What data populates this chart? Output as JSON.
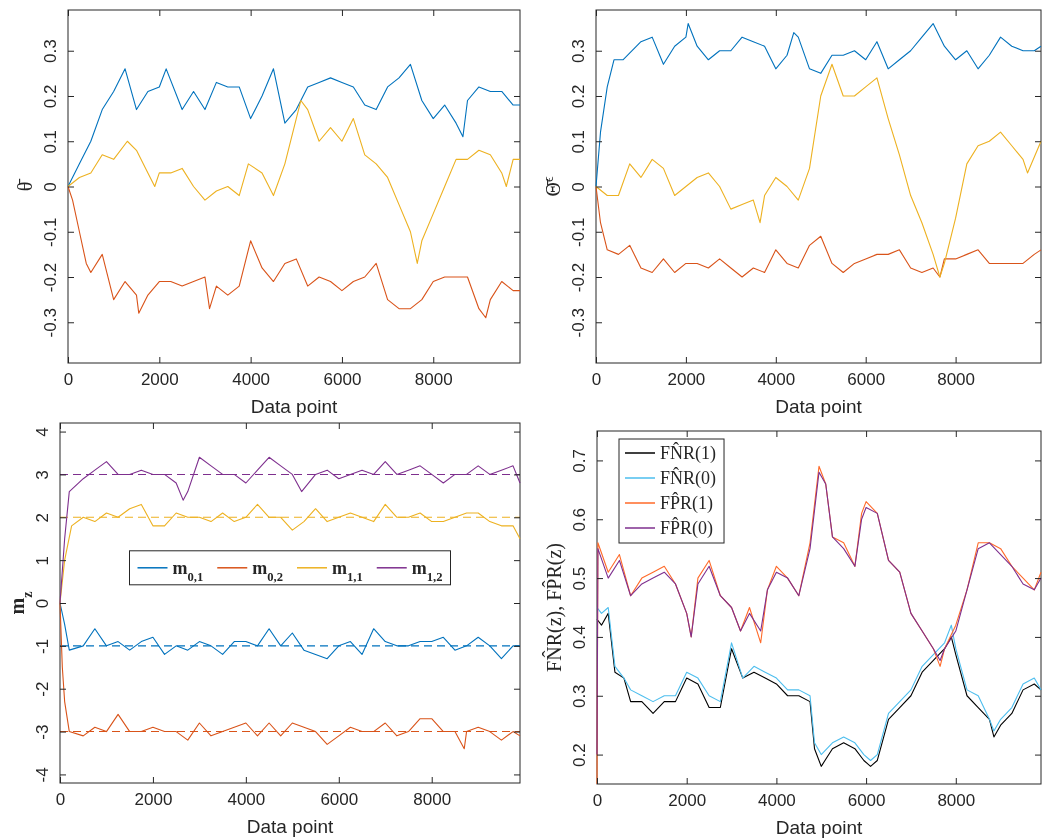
{
  "chart_data": [
    {
      "type": "line",
      "xlabel": "Data point",
      "ylabel": "θ̄",
      "xlim": [
        0,
        9900
      ],
      "ylim": [
        -0.39,
        0.39
      ],
      "xticks": [
        0,
        2000,
        4000,
        6000,
        8000
      ],
      "yticks": [
        -0.3,
        -0.2,
        -0.1,
        0,
        0.1,
        0.2,
        0.3
      ],
      "series": [
        {
          "color": "#0072bd",
          "x": [
            0,
            250,
            500,
            750,
            1000,
            1250,
            1500,
            1750,
            2000,
            2150,
            2500,
            2750,
            3000,
            3250,
            3500,
            3750,
            4000,
            4250,
            4500,
            4750,
            5000,
            5250,
            5500,
            5750,
            6000,
            6250,
            6500,
            6750,
            7000,
            7250,
            7500,
            7750,
            8000,
            8250,
            8500,
            8650,
            8750,
            9000,
            9250,
            9500,
            9750,
            9900
          ],
          "values": [
            0,
            0.05,
            0.1,
            0.17,
            0.21,
            0.26,
            0.17,
            0.21,
            0.22,
            0.26,
            0.17,
            0.21,
            0.17,
            0.23,
            0.22,
            0.22,
            0.15,
            0.2,
            0.26,
            0.14,
            0.17,
            0.22,
            0.23,
            0.24,
            0.23,
            0.22,
            0.18,
            0.17,
            0.22,
            0.24,
            0.27,
            0.19,
            0.15,
            0.18,
            0.14,
            0.11,
            0.19,
            0.22,
            0.21,
            0.21,
            0.18,
            0.18
          ]
        },
        {
          "color": "#d95319",
          "x": [
            0,
            100,
            250,
            400,
            500,
            750,
            1000,
            1250,
            1500,
            1550,
            1750,
            2000,
            2250,
            2500,
            2750,
            3000,
            3100,
            3250,
            3500,
            3750,
            4000,
            4250,
            4500,
            4750,
            5000,
            5250,
            5500,
            5750,
            6000,
            6250,
            6500,
            6750,
            7000,
            7250,
            7500,
            7750,
            8000,
            8250,
            8500,
            8750,
            9000,
            9150,
            9250,
            9500,
            9750,
            9900
          ],
          "values": [
            0,
            -0.03,
            -0.1,
            -0.17,
            -0.19,
            -0.15,
            -0.25,
            -0.21,
            -0.24,
            -0.28,
            -0.24,
            -0.21,
            -0.21,
            -0.22,
            -0.21,
            -0.2,
            -0.27,
            -0.22,
            -0.24,
            -0.22,
            -0.12,
            -0.18,
            -0.21,
            -0.17,
            -0.16,
            -0.22,
            -0.2,
            -0.21,
            -0.23,
            -0.21,
            -0.2,
            -0.17,
            -0.25,
            -0.27,
            -0.27,
            -0.25,
            -0.21,
            -0.2,
            -0.2,
            -0.2,
            -0.27,
            -0.29,
            -0.25,
            -0.21,
            -0.23,
            -0.23
          ]
        },
        {
          "color": "#edb120",
          "x": [
            0,
            250,
            500,
            750,
            1000,
            1300,
            1500,
            1750,
            1900,
            2000,
            2250,
            2500,
            2750,
            3000,
            3250,
            3500,
            3750,
            3950,
            4250,
            4500,
            4750,
            5000,
            5100,
            5250,
            5500,
            5750,
            6000,
            6250,
            6500,
            6750,
            7000,
            7250,
            7500,
            7650,
            7750,
            8000,
            8250,
            8500,
            8750,
            9000,
            9250,
            9500,
            9600,
            9750,
            9900
          ],
          "values": [
            0,
            0.02,
            0.03,
            0.07,
            0.06,
            0.1,
            0.08,
            0.03,
            0,
            0.03,
            0.03,
            0.04,
            0,
            -0.03,
            -0.01,
            0,
            -0.02,
            0.05,
            0.03,
            -0.02,
            0.05,
            0.15,
            0.19,
            0.17,
            0.1,
            0.13,
            0.1,
            0.15,
            0.07,
            0.05,
            0.02,
            -0.04,
            -0.1,
            -0.17,
            -0.12,
            -0.06,
            0,
            0.06,
            0.06,
            0.08,
            0.07,
            0.03,
            0,
            0.06,
            0.06
          ]
        }
      ]
    },
    {
      "type": "line",
      "xlabel": "Data point",
      "ylabel": "Θ̄$^{ϵ}$",
      "xlim": [
        0,
        9900
      ],
      "ylim": [
        -0.39,
        0.39
      ],
      "xticks": [
        0,
        2000,
        4000,
        6000,
        8000
      ],
      "yticks": [
        -0.3,
        -0.2,
        -0.1,
        0,
        0.1,
        0.2,
        0.3
      ],
      "series": [
        {
          "color": "#0072bd",
          "x": [
            0,
            100,
            250,
            400,
            600,
            1000,
            1250,
            1500,
            1750,
            2000,
            2050,
            2250,
            2500,
            2750,
            3000,
            3250,
            3500,
            3750,
            4000,
            4250,
            4400,
            4500,
            4750,
            5000,
            5250,
            5500,
            5750,
            6000,
            6250,
            6500,
            6750,
            7000,
            7250,
            7500,
            7750,
            8000,
            8250,
            8500,
            8750,
            9000,
            9250,
            9500,
            9750,
            9900
          ],
          "values": [
            0,
            0.12,
            0.22,
            0.28,
            0.28,
            0.32,
            0.33,
            0.27,
            0.31,
            0.33,
            0.36,
            0.31,
            0.28,
            0.3,
            0.3,
            0.33,
            0.32,
            0.31,
            0.26,
            0.29,
            0.34,
            0.33,
            0.26,
            0.25,
            0.29,
            0.29,
            0.3,
            0.28,
            0.32,
            0.26,
            0.28,
            0.3,
            0.33,
            0.36,
            0.31,
            0.28,
            0.3,
            0.26,
            0.29,
            0.33,
            0.31,
            0.3,
            0.3,
            0.31
          ]
        },
        {
          "color": "#d95319",
          "x": [
            0,
            100,
            250,
            500,
            750,
            1000,
            1250,
            1500,
            1750,
            2000,
            2250,
            2500,
            2750,
            3000,
            3250,
            3500,
            3750,
            4000,
            4250,
            4500,
            4750,
            5000,
            5250,
            5500,
            5750,
            6000,
            6250,
            6500,
            6750,
            7000,
            7250,
            7500,
            7650,
            7750,
            8000,
            8250,
            8500,
            8750,
            9000,
            9250,
            9500,
            9750,
            9900
          ],
          "values": [
            0,
            -0.08,
            -0.14,
            -0.15,
            -0.13,
            -0.18,
            -0.19,
            -0.16,
            -0.19,
            -0.17,
            -0.17,
            -0.18,
            -0.16,
            -0.18,
            -0.2,
            -0.18,
            -0.19,
            -0.14,
            -0.17,
            -0.18,
            -0.13,
            -0.11,
            -0.17,
            -0.19,
            -0.17,
            -0.16,
            -0.15,
            -0.15,
            -0.14,
            -0.18,
            -0.19,
            -0.18,
            -0.2,
            -0.16,
            -0.16,
            -0.15,
            -0.14,
            -0.17,
            -0.17,
            -0.17,
            -0.17,
            -0.15,
            -0.14
          ]
        },
        {
          "color": "#edb120",
          "x": [
            0,
            250,
            500,
            750,
            1000,
            1250,
            1500,
            1750,
            2000,
            2250,
            2500,
            2750,
            3000,
            3250,
            3500,
            3650,
            3750,
            4000,
            4250,
            4500,
            4750,
            5000,
            5250,
            5500,
            5750,
            6000,
            6250,
            6500,
            6750,
            7000,
            7250,
            7500,
            7650,
            7750,
            8000,
            8250,
            8500,
            8750,
            9000,
            9250,
            9500,
            9600,
            9900
          ],
          "values": [
            0,
            -0.02,
            -0.02,
            0.05,
            0.02,
            0.06,
            0.04,
            -0.02,
            0,
            0.02,
            0.03,
            0,
            -0.05,
            -0.04,
            -0.03,
            -0.08,
            -0.02,
            0.02,
            0,
            -0.03,
            0.04,
            0.2,
            0.27,
            0.2,
            0.2,
            0.22,
            0.24,
            0.15,
            0.07,
            -0.02,
            -0.08,
            -0.15,
            -0.2,
            -0.17,
            -0.07,
            0.05,
            0.09,
            0.1,
            0.12,
            0.09,
            0.06,
            0.03,
            0.1
          ]
        }
      ]
    },
    {
      "type": "line",
      "xlabel": "Data point",
      "ylabel": "m$_{z}$",
      "xlim": [
        0,
        9900
      ],
      "ylim": [
        -4.2,
        4.2
      ],
      "xticks": [
        0,
        2000,
        4000,
        6000,
        8000
      ],
      "yticks": [
        -4,
        -3,
        -2,
        -1,
        0,
        1,
        2,
        3,
        4
      ],
      "legend": "top",
      "ref_lines": [
        {
          "axis": "y",
          "value": 3,
          "color": "#7e2f8e",
          "line_style": "dashed"
        },
        {
          "axis": "y",
          "value": 2,
          "color": "#edb120",
          "line_style": "dashed"
        },
        {
          "axis": "y",
          "value": -1,
          "color": "#0072bd",
          "line_style": "dashed"
        },
        {
          "axis": "y",
          "value": -3,
          "color": "#d95319",
          "line_style": "dashed"
        }
      ],
      "series": [
        {
          "name": "m$_{0,1}$",
          "color": "#0072bd",
          "x": [
            0,
            100,
            200,
            500,
            750,
            1000,
            1250,
            1500,
            1750,
            2000,
            2250,
            2500,
            2750,
            3000,
            3250,
            3500,
            3750,
            4000,
            4250,
            4500,
            4750,
            5000,
            5250,
            5500,
            5750,
            6000,
            6250,
            6500,
            6750,
            7000,
            7250,
            7500,
            7750,
            8000,
            8250,
            8500,
            8750,
            9000,
            9250,
            9500,
            9750,
            9900
          ],
          "values": [
            0,
            -0.5,
            -1.1,
            -1,
            -0.6,
            -1,
            -0.9,
            -1.1,
            -0.9,
            -0.8,
            -1.2,
            -1,
            -1.1,
            -0.9,
            -1,
            -1.2,
            -0.9,
            -0.9,
            -1,
            -0.6,
            -1,
            -0.7,
            -1.1,
            -1.2,
            -1.3,
            -1,
            -0.9,
            -1.2,
            -0.6,
            -0.9,
            -1,
            -1,
            -0.9,
            -0.9,
            -0.8,
            -1.1,
            -1,
            -0.8,
            -1,
            -1.3,
            -1,
            -1
          ]
        },
        {
          "name": "m$_{0,2}$",
          "color": "#d95319",
          "x": [
            0,
            50,
            100,
            200,
            500,
            750,
            1000,
            1250,
            1500,
            1750,
            2000,
            2250,
            2500,
            2750,
            3000,
            3250,
            3500,
            3750,
            4000,
            4250,
            4500,
            4750,
            5000,
            5250,
            5500,
            5750,
            6000,
            6250,
            6500,
            6750,
            7000,
            7250,
            7500,
            7750,
            8000,
            8250,
            8500,
            8700,
            8750,
            9000,
            9250,
            9500,
            9750,
            9900
          ],
          "values": [
            0,
            -1.5,
            -2.3,
            -3,
            -3.1,
            -2.9,
            -3,
            -2.6,
            -3,
            -3,
            -2.9,
            -3,
            -3,
            -3.2,
            -2.8,
            -3.1,
            -3,
            -2.9,
            -2.8,
            -3.1,
            -2.8,
            -3.1,
            -2.8,
            -2.9,
            -3,
            -3.3,
            -3.1,
            -2.9,
            -3,
            -3,
            -2.8,
            -3.1,
            -3,
            -2.7,
            -2.7,
            -3,
            -3,
            -3.4,
            -3,
            -2.9,
            -3,
            -3.2,
            -3,
            -3.1
          ]
        },
        {
          "name": "m$_{1,1}$",
          "color": "#edb120",
          "x": [
            0,
            100,
            250,
            500,
            750,
            1000,
            1250,
            1500,
            1750,
            2000,
            2250,
            2500,
            2750,
            3000,
            3250,
            3500,
            3750,
            4000,
            4250,
            4500,
            4750,
            5000,
            5250,
            5500,
            5750,
            6000,
            6250,
            6500,
            6750,
            7000,
            7250,
            7500,
            7750,
            8000,
            8250,
            8500,
            8750,
            9000,
            9250,
            9500,
            9750,
            9900
          ],
          "values": [
            0,
            1,
            1.8,
            2,
            1.9,
            2.1,
            2,
            2.2,
            2.3,
            1.8,
            1.8,
            2.1,
            2,
            2,
            1.9,
            2.1,
            1.9,
            2,
            2.3,
            2,
            2,
            1.7,
            1.9,
            2.2,
            1.9,
            2,
            2.1,
            2,
            1.9,
            2.3,
            2,
            2,
            2.1,
            1.9,
            1.9,
            2,
            2.1,
            2.1,
            1.9,
            1.8,
            1.8,
            1.5
          ]
        },
        {
          "name": "m$_{1,2}$",
          "color": "#7e2f8e",
          "x": [
            0,
            100,
            200,
            500,
            750,
            1000,
            1250,
            1500,
            1750,
            2000,
            2250,
            2500,
            2650,
            2750,
            3000,
            3250,
            3500,
            3750,
            4000,
            4250,
            4500,
            4750,
            5000,
            5200,
            5500,
            5750,
            6000,
            6250,
            6500,
            6750,
            7000,
            7250,
            7500,
            7750,
            8000,
            8250,
            8500,
            8750,
            9000,
            9250,
            9500,
            9750,
            9900
          ],
          "values": [
            0,
            1.5,
            2.6,
            2.9,
            3.1,
            3.3,
            3,
            3,
            3.1,
            3,
            3,
            2.8,
            2.4,
            2.6,
            3.4,
            3.2,
            3,
            3,
            2.8,
            3.1,
            3.4,
            3.2,
            3,
            2.6,
            3,
            3.1,
            2.9,
            3,
            3.1,
            3,
            3.3,
            3,
            3.1,
            3.2,
            3,
            2.8,
            3,
            3,
            3.2,
            3,
            3.1,
            3.2,
            2.8
          ]
        }
      ]
    },
    {
      "type": "line",
      "xlabel": "Data point",
      "ylabel": "FN̂R(z), FP̂R(z)",
      "xlim": [
        0,
        9900
      ],
      "ylim": [
        0.15,
        0.75
      ],
      "xticks": [
        0,
        2000,
        4000,
        6000,
        8000
      ],
      "yticks": [
        0.2,
        0.3,
        0.4,
        0.5,
        0.6,
        0.7
      ],
      "legend": "top left",
      "series": [
        {
          "name": "FN̂R(1)",
          "color": "#000000",
          "x": [
            0,
            100,
            250,
            400,
            600,
            750,
            1000,
            1250,
            1500,
            1750,
            2000,
            2250,
            2500,
            2750,
            3000,
            3250,
            3500,
            3750,
            4000,
            4250,
            4500,
            4750,
            4850,
            5000,
            5250,
            5500,
            5750,
            5950,
            6100,
            6250,
            6500,
            6750,
            7000,
            7250,
            7500,
            7750,
            7900,
            8000,
            8250,
            8500,
            8750,
            8850,
            9000,
            9250,
            9500,
            9750,
            9900
          ],
          "values": [
            0.43,
            0.42,
            0.44,
            0.34,
            0.33,
            0.29,
            0.29,
            0.27,
            0.29,
            0.29,
            0.33,
            0.32,
            0.28,
            0.28,
            0.38,
            0.33,
            0.34,
            0.33,
            0.32,
            0.3,
            0.3,
            0.29,
            0.21,
            0.18,
            0.21,
            0.22,
            0.21,
            0.19,
            0.18,
            0.19,
            0.26,
            0.28,
            0.3,
            0.34,
            0.36,
            0.38,
            0.4,
            0.37,
            0.3,
            0.28,
            0.26,
            0.23,
            0.25,
            0.27,
            0.31,
            0.32,
            0.31
          ]
        },
        {
          "name": "FN̂R(0)",
          "color": "#4dbeee",
          "x": [
            0,
            100,
            250,
            400,
            600,
            750,
            1000,
            1250,
            1500,
            1750,
            2000,
            2250,
            2500,
            2750,
            3000,
            3250,
            3500,
            3750,
            4000,
            4250,
            4500,
            4750,
            4850,
            5000,
            5250,
            5500,
            5750,
            5950,
            6100,
            6250,
            6500,
            6750,
            7000,
            7250,
            7500,
            7750,
            7900,
            8000,
            8250,
            8500,
            8750,
            8850,
            9000,
            9250,
            9500,
            9750,
            9900
          ],
          "values": [
            0.45,
            0.44,
            0.45,
            0.35,
            0.33,
            0.31,
            0.3,
            0.29,
            0.3,
            0.3,
            0.34,
            0.33,
            0.3,
            0.29,
            0.39,
            0.33,
            0.35,
            0.34,
            0.33,
            0.31,
            0.31,
            0.3,
            0.22,
            0.2,
            0.22,
            0.23,
            0.22,
            0.2,
            0.19,
            0.2,
            0.27,
            0.29,
            0.31,
            0.35,
            0.37,
            0.39,
            0.42,
            0.38,
            0.31,
            0.3,
            0.26,
            0.24,
            0.26,
            0.28,
            0.32,
            0.33,
            0.31
          ]
        },
        {
          "name": "FP̂R(1)",
          "color": "#ff6a29",
          "x": [
            0,
            20,
            250,
            500,
            750,
            1000,
            1250,
            1500,
            1750,
            2000,
            2100,
            2250,
            2500,
            2750,
            3000,
            3200,
            3400,
            3650,
            3800,
            4000,
            4250,
            4500,
            4750,
            4950,
            5100,
            5250,
            5500,
            5750,
            5900,
            6000,
            6250,
            6500,
            6750,
            7000,
            7250,
            7500,
            7650,
            7750,
            8000,
            8250,
            8500,
            8750,
            9000,
            9250,
            9500,
            9750,
            9900
          ],
          "values": [
            0.15,
            0.56,
            0.51,
            0.54,
            0.47,
            0.5,
            0.51,
            0.52,
            0.49,
            0.44,
            0.4,
            0.5,
            0.53,
            0.47,
            0.45,
            0.41,
            0.45,
            0.39,
            0.48,
            0.52,
            0.5,
            0.47,
            0.56,
            0.69,
            0.66,
            0.57,
            0.56,
            0.52,
            0.61,
            0.63,
            0.61,
            0.53,
            0.51,
            0.44,
            0.41,
            0.38,
            0.35,
            0.38,
            0.42,
            0.48,
            0.56,
            0.56,
            0.55,
            0.52,
            0.5,
            0.48,
            0.51
          ]
        },
        {
          "name": "FP̂R(0)",
          "color": "#7e2f8e",
          "x": [
            0,
            20,
            250,
            500,
            750,
            1000,
            1250,
            1500,
            1750,
            2000,
            2100,
            2250,
            2500,
            2750,
            3000,
            3200,
            3400,
            3650,
            3800,
            4000,
            4250,
            4500,
            4750,
            4950,
            5100,
            5250,
            5500,
            5750,
            5900,
            6000,
            6250,
            6500,
            6750,
            7000,
            7250,
            7500,
            7650,
            7750,
            8000,
            8250,
            8500,
            8750,
            9000,
            9250,
            9500,
            9750,
            9900
          ],
          "values": [
            0.2,
            0.55,
            0.5,
            0.53,
            0.47,
            0.49,
            0.5,
            0.51,
            0.49,
            0.44,
            0.4,
            0.49,
            0.52,
            0.47,
            0.45,
            0.41,
            0.44,
            0.41,
            0.48,
            0.51,
            0.5,
            0.47,
            0.55,
            0.68,
            0.66,
            0.57,
            0.55,
            0.52,
            0.6,
            0.62,
            0.61,
            0.53,
            0.51,
            0.44,
            0.41,
            0.38,
            0.36,
            0.38,
            0.41,
            0.48,
            0.55,
            0.56,
            0.54,
            0.52,
            0.49,
            0.48,
            0.5
          ]
        }
      ]
    }
  ]
}
